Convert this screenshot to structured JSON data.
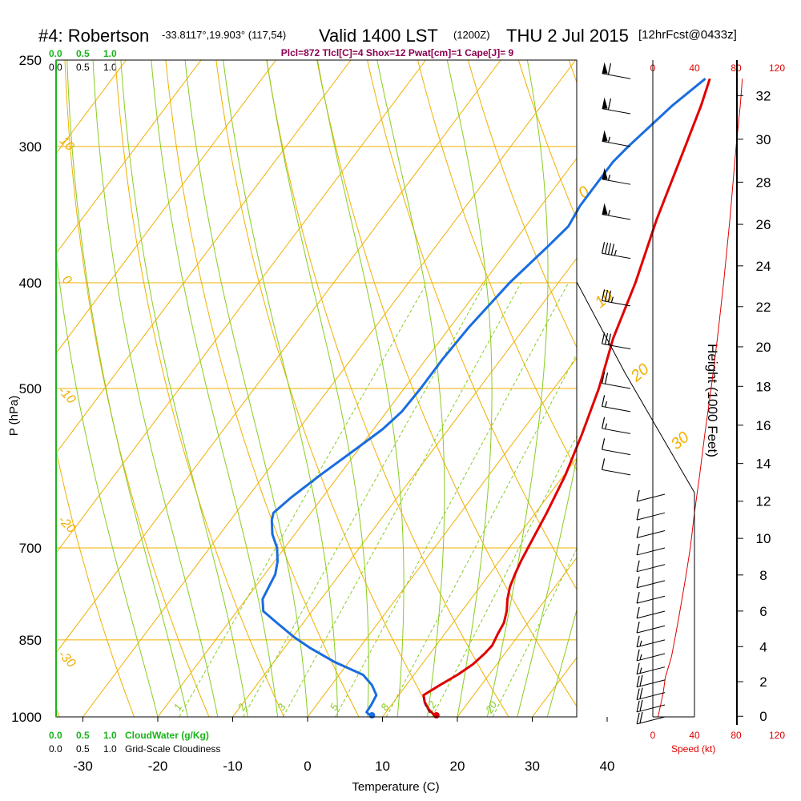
{
  "header": {
    "station": "#4: Robertson",
    "coords": "-33.8117°,19.903° (117,54)",
    "valid": "Valid 1400 LST",
    "valid_z": "(1200Z)",
    "date": "THU 2 Jul 2015",
    "forecast": "[12hrFcst@0433z]",
    "params": "Plcl=872 Tlcl[C]=4 Shox=12 Pwat[cm]=1 Cape[J]= 9"
  },
  "cloud_scale": {
    "green_ticks": [
      "0.0",
      "0.5",
      "1.0"
    ],
    "black_ticks": [
      "0.0",
      "0.5",
      "1.0"
    ],
    "cloudwater_label": "CloudWater (g/Kg)",
    "cloudiness_label": "Grid-Scale Cloudiness"
  },
  "speed_scale": {
    "ticks": [
      "0",
      "40",
      "80",
      "120"
    ],
    "label": "Speed (kt)"
  },
  "chart_data": {
    "type": "line",
    "title": "#4: Robertson Valid 1400 LST (1200Z) THU 2 Jul 2015",
    "xlabel": "Temperature (C)",
    "ylabel": "P (hPa)",
    "y2label": "Height (1000 Feet)",
    "xlim": [
      -30,
      45
    ],
    "pressure_range": [
      1000,
      250
    ],
    "y_scale": "log-pressure",
    "x_ticks": [
      -30,
      -20,
      -10,
      0,
      10,
      20,
      30,
      40
    ],
    "pressure_ticks": [
      250,
      300,
      400,
      500,
      700,
      850,
      1000
    ],
    "height_ticks": [
      0,
      2,
      4,
      6,
      8,
      10,
      12,
      14,
      16,
      18,
      20,
      22,
      24,
      26,
      28,
      30,
      32
    ],
    "isotherm_labels": [
      "10",
      "0",
      "-10",
      "-20",
      "-30"
    ],
    "dry_adiabat_labels": [
      "0",
      "10",
      "20",
      "30"
    ],
    "mixing_ratio_labels": [
      "1",
      "2",
      "3",
      "5",
      "8",
      "12",
      "20"
    ],
    "series": [
      {
        "name": "Temperature",
        "color": "#e00000",
        "points": [
          [
            17.2,
            1000
          ],
          [
            15.5,
            985
          ],
          [
            14.2,
            970
          ],
          [
            13.3,
            955
          ],
          [
            14.5,
            935
          ],
          [
            15.8,
            915
          ],
          [
            16.8,
            895
          ],
          [
            17.3,
            875
          ],
          [
            17.5,
            860
          ],
          [
            17.1,
            840
          ],
          [
            16.8,
            820
          ],
          [
            16.0,
            800
          ],
          [
            14.9,
            780
          ],
          [
            14.0,
            760
          ],
          [
            13.4,
            740
          ],
          [
            12.9,
            720
          ],
          [
            12.5,
            700
          ],
          [
            11.5,
            650
          ],
          [
            10.2,
            600
          ],
          [
            8.3,
            550
          ],
          [
            6.0,
            500
          ],
          [
            2.9,
            450
          ],
          [
            0.3,
            400
          ],
          [
            -3.2,
            350
          ],
          [
            -6.7,
            300
          ],
          [
            -8.7,
            275
          ],
          [
            -10.2,
            260
          ]
        ]
      },
      {
        "name": "Dewpoint",
        "color": "#1a6de0",
        "points": [
          [
            8.6,
            1000
          ],
          [
            7.4,
            990
          ],
          [
            7.3,
            975
          ],
          [
            7.0,
            955
          ],
          [
            5.4,
            935
          ],
          [
            3.2,
            915
          ],
          [
            -2.0,
            890
          ],
          [
            -6.5,
            865
          ],
          [
            -9.8,
            845
          ],
          [
            -13.5,
            820
          ],
          [
            -16.5,
            800
          ],
          [
            -17.8,
            780
          ],
          [
            -18.2,
            760
          ],
          [
            -18.6,
            740
          ],
          [
            -19.6,
            720
          ],
          [
            -21.0,
            700
          ],
          [
            -23.0,
            680
          ],
          [
            -24.5,
            660
          ],
          [
            -25.0,
            650
          ],
          [
            -24.2,
            630
          ],
          [
            -22.5,
            600
          ],
          [
            -20.5,
            570
          ],
          [
            -18.8,
            545
          ],
          [
            -18.0,
            525
          ],
          [
            -17.8,
            500
          ],
          [
            -17.8,
            470
          ],
          [
            -17.5,
            440
          ],
          [
            -16.5,
            400
          ],
          [
            -15.0,
            370
          ],
          [
            -14.3,
            355
          ],
          [
            -14.8,
            340
          ],
          [
            -14.8,
            310
          ],
          [
            -14.3,
            300
          ],
          [
            -12.5,
            275
          ],
          [
            -10.8,
            260
          ]
        ]
      },
      {
        "name": "Parcel",
        "color": "#8b0050",
        "points": [
          [
            17.2,
            1000
          ],
          [
            15.8,
            990
          ],
          [
            14.5,
            975
          ],
          [
            13.4,
            958
          ]
        ]
      },
      {
        "name": "Wind speed (kt)",
        "color": "#e00000",
        "points": [
          [
            5,
            1000
          ],
          [
            7,
            980
          ],
          [
            10,
            950
          ],
          [
            12,
            920
          ],
          [
            15,
            900
          ],
          [
            18,
            880
          ],
          [
            20,
            860
          ],
          [
            22,
            840
          ],
          [
            24,
            820
          ],
          [
            26,
            800
          ],
          [
            28,
            780
          ],
          [
            30,
            760
          ],
          [
            32,
            740
          ],
          [
            34,
            720
          ],
          [
            36,
            700
          ],
          [
            40,
            650
          ],
          [
            45,
            600
          ],
          [
            50,
            550
          ],
          [
            56,
            500
          ],
          [
            62,
            450
          ],
          [
            68,
            400
          ],
          [
            74,
            350
          ],
          [
            80,
            300
          ],
          [
            84,
            275
          ],
          [
            86,
            260
          ]
        ]
      }
    ],
    "surface_points": {
      "temperature": 17.2,
      "dewpoint": 8.6
    },
    "wind_barbs": [
      {
        "p": 1000,
        "kt": 20
      },
      {
        "p": 975,
        "kt": 20
      },
      {
        "p": 950,
        "kt": 20
      },
      {
        "p": 925,
        "kt": 20
      },
      {
        "p": 900,
        "kt": 15
      },
      {
        "p": 875,
        "kt": 15
      },
      {
        "p": 850,
        "kt": 15
      },
      {
        "p": 825,
        "kt": 10
      },
      {
        "p": 800,
        "kt": 10
      },
      {
        "p": 775,
        "kt": 10
      },
      {
        "p": 750,
        "kt": 10
      },
      {
        "p": 725,
        "kt": 10
      },
      {
        "p": 700,
        "kt": 10
      },
      {
        "p": 675,
        "kt": 10
      },
      {
        "p": 650,
        "kt": 10
      },
      {
        "p": 625,
        "kt": 10
      },
      {
        "p": 600,
        "kt": 10
      },
      {
        "p": 575,
        "kt": 10
      },
      {
        "p": 550,
        "kt": 15
      },
      {
        "p": 525,
        "kt": 15
      },
      {
        "p": 500,
        "kt": 20
      },
      {
        "p": 460,
        "kt": 30
      },
      {
        "p": 420,
        "kt": 35
      },
      {
        "p": 380,
        "kt": 45
      },
      {
        "p": 350,
        "kt": 55
      },
      {
        "p": 325,
        "kt": 55
      },
      {
        "p": 300,
        "kt": 55
      },
      {
        "p": 280,
        "kt": 60
      },
      {
        "p": 260,
        "kt": 60
      }
    ]
  }
}
